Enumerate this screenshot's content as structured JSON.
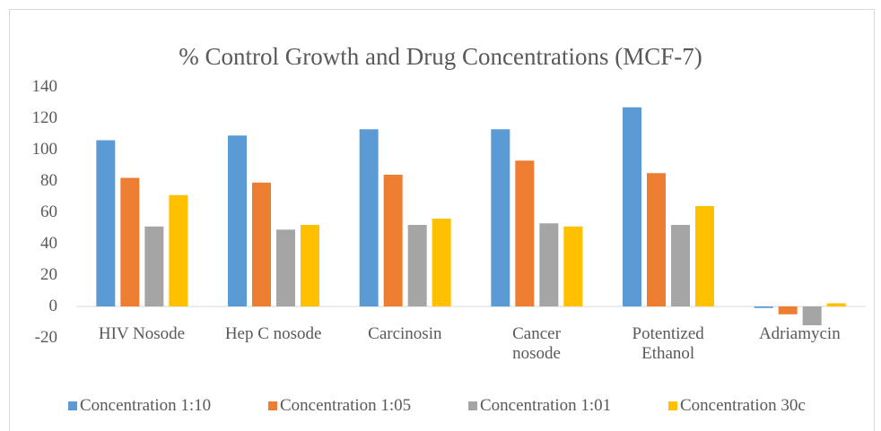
{
  "chart_data": {
    "type": "bar",
    "title": "% Control Growth and Drug Concentrations (MCF-7)",
    "categories": [
      "HIV Nosode",
      "Hep C nosode",
      "Carcinosin",
      "Cancer\nnosode",
      "Potentized\nEthanol",
      "Adriamycin"
    ],
    "series": [
      {
        "name": "Concentration 1:10",
        "color": "#5b9bd5",
        "values": [
          106,
          109,
          113,
          113,
          127,
          -1
        ]
      },
      {
        "name": "Concentration 1:05",
        "color": "#ed7d31",
        "values": [
          82,
          79,
          84,
          93,
          85,
          -5
        ]
      },
      {
        "name": "Concentration 1:01",
        "color": "#a5a5a5",
        "values": [
          51,
          49,
          52,
          53,
          52,
          -12
        ]
      },
      {
        "name": "Concentration 30c",
        "color": "#ffc000",
        "values": [
          71,
          52,
          56,
          51,
          64,
          2
        ]
      }
    ],
    "ylim": [
      -20,
      140
    ],
    "yticks": [
      -20,
      0,
      20,
      40,
      60,
      80,
      100,
      120,
      140
    ],
    "legend": "bottom"
  }
}
